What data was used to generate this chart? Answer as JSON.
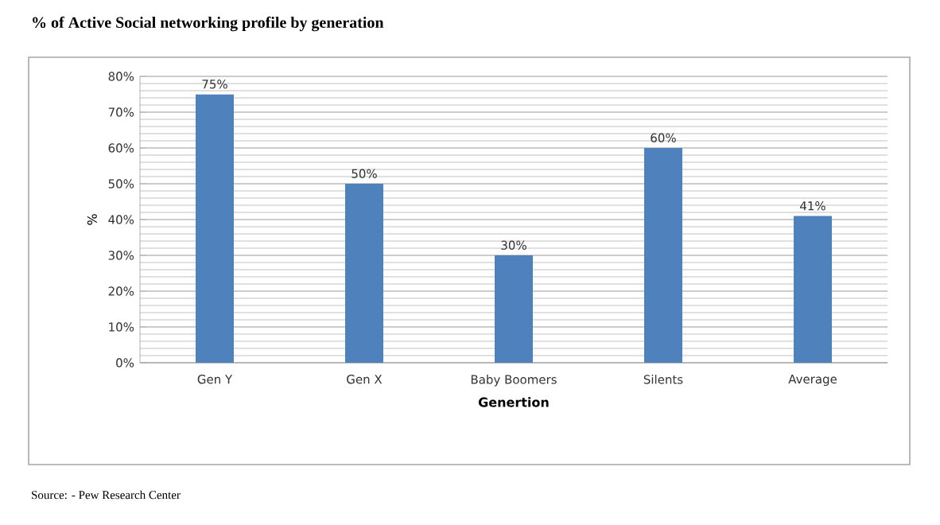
{
  "chart_data": {
    "type": "bar",
    "title": "% of Active Social networking profile by generation",
    "xlabel": "Genertion",
    "ylabel": "%",
    "categories": [
      "Gen Y",
      "Gen X",
      "Baby Boomers",
      "Silents",
      "Average"
    ],
    "values": [
      75,
      50,
      30,
      60,
      41
    ],
    "value_labels": [
      "75%",
      "50%",
      "30%",
      "60%",
      "41%"
    ],
    "color": "#4f81bd",
    "ylim": [
      0,
      80
    ],
    "yticks": [
      {
        "value": 0,
        "label": "0%"
      },
      {
        "value": 10,
        "label": "10%"
      },
      {
        "value": 20,
        "label": "20%"
      },
      {
        "value": 30,
        "label": "30%"
      },
      {
        "value": 40,
        "label": "40%"
      },
      {
        "value": 50,
        "label": "50%"
      },
      {
        "value": 60,
        "label": "60%"
      },
      {
        "value": 70,
        "label": "70%"
      },
      {
        "value": 80,
        "label": "80%"
      }
    ],
    "grid": "y",
    "annotations": [
      "Source: - Pew Research Center"
    ]
  }
}
